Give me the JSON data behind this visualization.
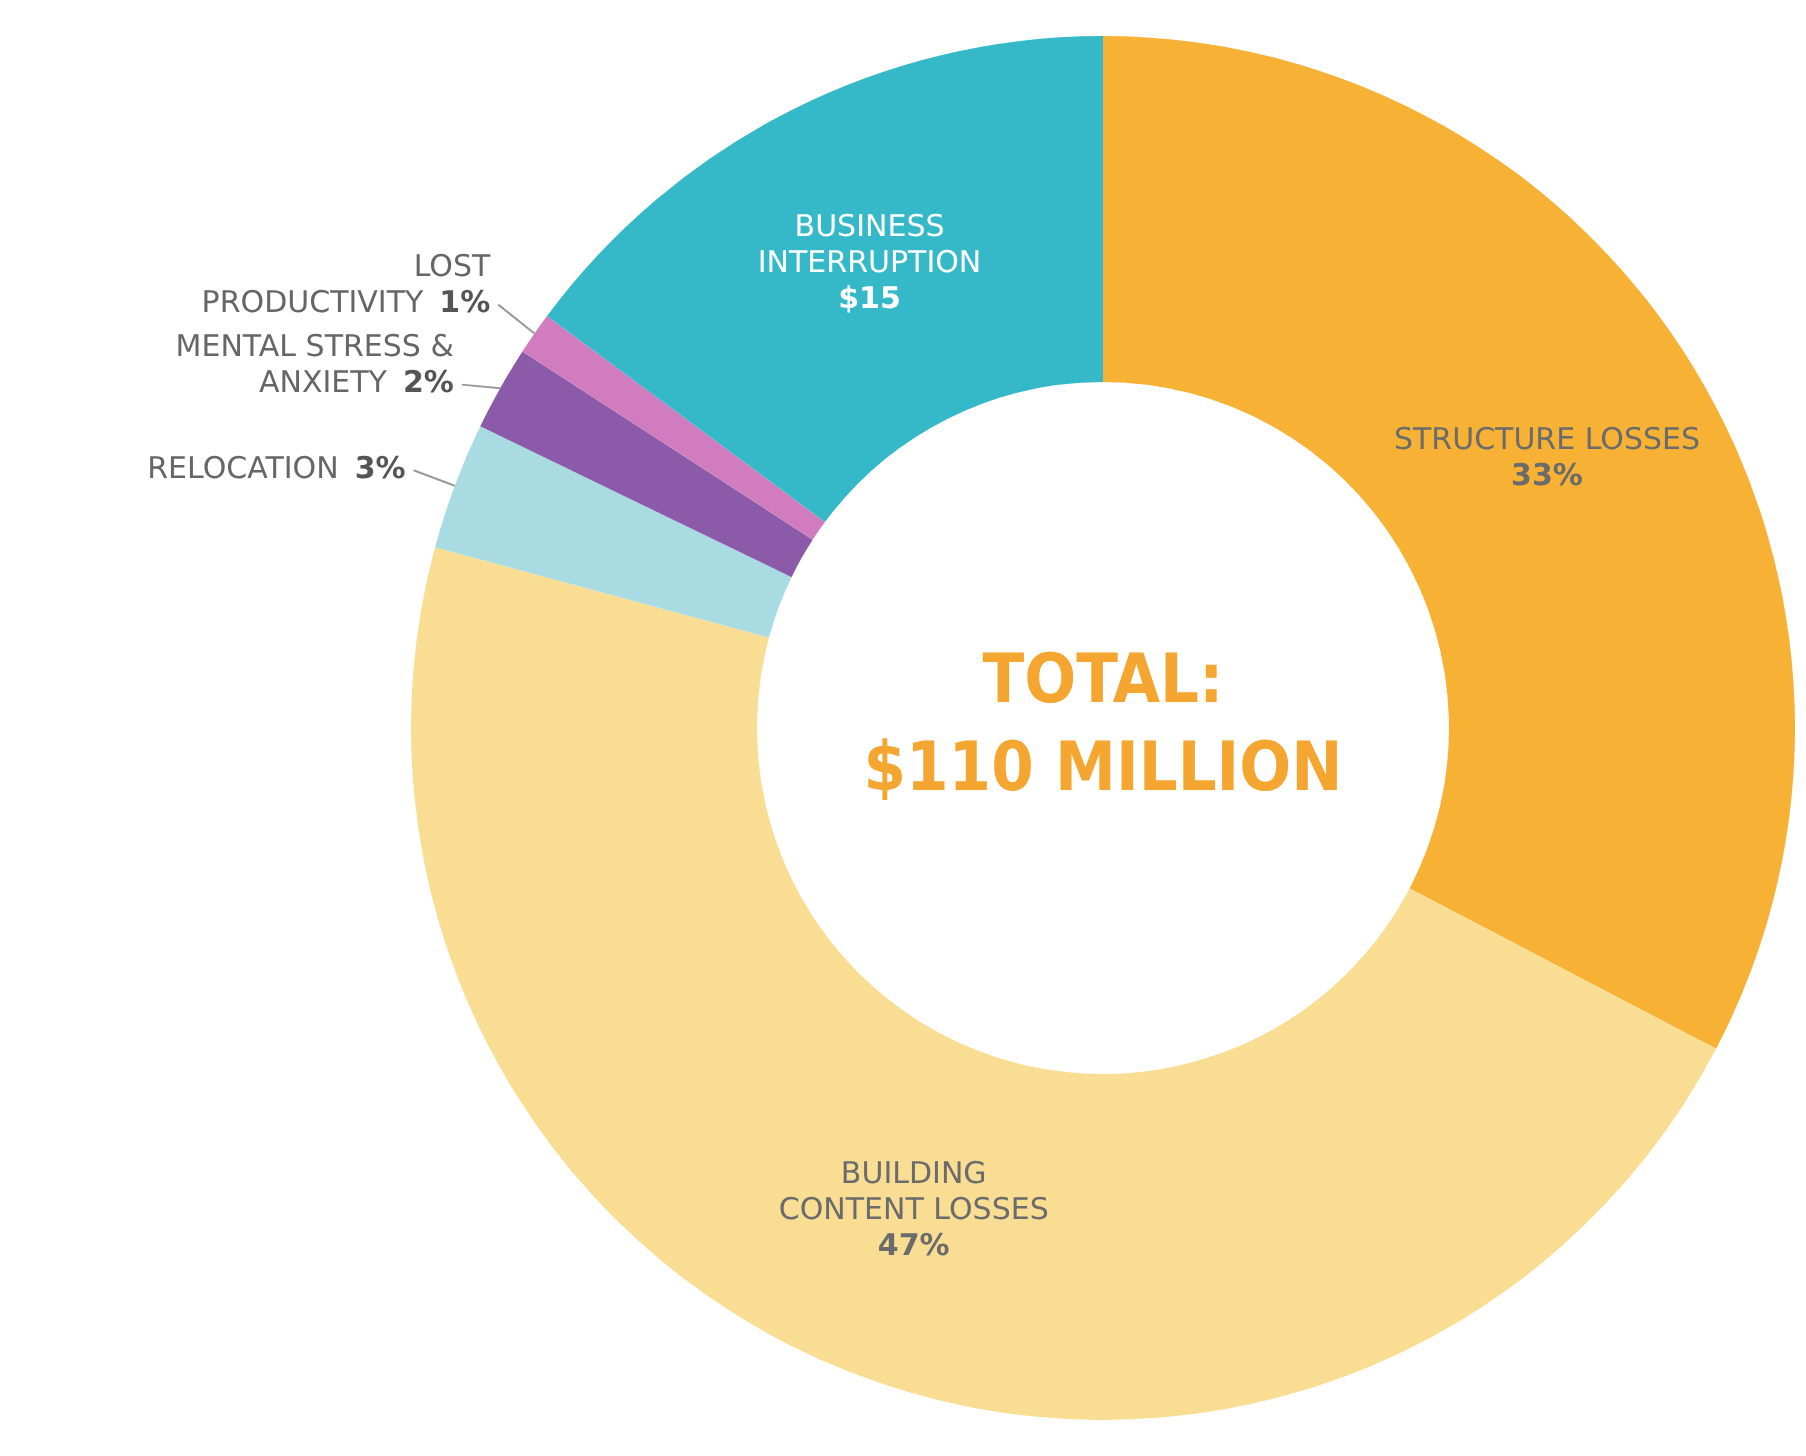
{
  "chart_data": {
    "type": "donut",
    "categories": [
      "STRUCTURE LOSSES",
      "BUILDING CONTENT LOSSES",
      "RELOCATION",
      "MENTAL STRESS & ANXIETY",
      "LOST PRODUCTIVITY",
      "BUSINESS INTERRUPTION"
    ],
    "values": [
      33,
      47,
      3,
      2,
      1,
      15
    ],
    "value_labels": [
      "33%",
      "47%",
      "3%",
      "2%",
      "1%",
      "$15"
    ],
    "colors": [
      "#f7b135",
      "#f8dd93",
      "#a9dce2",
      "#8b5aa9",
      "#d27cc0",
      "#35b9c9"
    ],
    "annotations": [
      "TOTAL:",
      "$110 MILLION"
    ],
    "legend": false
  }
}
